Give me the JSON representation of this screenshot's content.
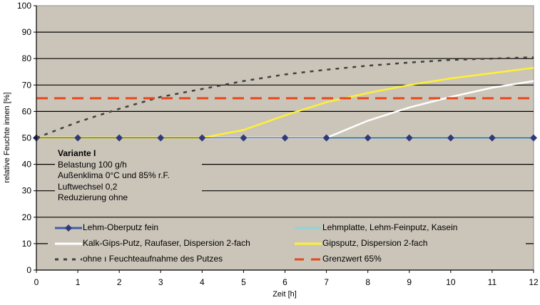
{
  "chart_data": {
    "type": "line",
    "title": "",
    "xlabel": "Zeit [h]",
    "ylabel": "relative Feuchte innen [%]",
    "x": [
      0,
      1,
      2,
      3,
      4,
      5,
      6,
      7,
      8,
      9,
      10,
      11,
      12
    ],
    "xlim": [
      0,
      12
    ],
    "ylim": [
      0,
      100
    ],
    "yticks": [
      0,
      10,
      20,
      30,
      40,
      50,
      60,
      70,
      80,
      90,
      100
    ],
    "xticks": [
      0,
      1,
      2,
      3,
      4,
      5,
      6,
      7,
      8,
      9,
      10,
      11,
      12
    ],
    "grid": true,
    "background": "#cbc5b9",
    "legend_position": "bottom-inside",
    "series": [
      {
        "name": "Lehm-Oberputz fein",
        "color": "#2e3a7a",
        "style": "solid-diamond",
        "values": [
          50,
          50,
          50,
          50,
          50,
          50,
          50,
          50,
          50,
          50,
          50,
          50,
          50
        ]
      },
      {
        "name": "Lehmplatte, Lehm-Feinputz, Kasein",
        "color": "#92d3d8",
        "style": "solid",
        "values": [
          50,
          50,
          50,
          50,
          50,
          50,
          50,
          50,
          50,
          50,
          50,
          50,
          50
        ]
      },
      {
        "name": "Kalk-Gips-Putz, Raufaser, Dispersion 2-fach",
        "color": "#ffffff",
        "style": "solid",
        "values": [
          50,
          50,
          50,
          50,
          50,
          50,
          50,
          50,
          56.5,
          61.5,
          65.5,
          69,
          71.5
        ]
      },
      {
        "name": "Gipsputz, Dispersion 2-fach",
        "color": "#fff033",
        "style": "solid",
        "values": [
          50,
          50,
          50,
          50,
          50,
          53,
          58.5,
          63.5,
          67,
          70,
          72.5,
          74.5,
          76.5
        ]
      },
      {
        "name": "ohne Feuchteaufnahme des Putzes",
        "color": "#404040",
        "style": "dotted",
        "values": [
          50,
          56,
          61,
          65.5,
          68.5,
          71.5,
          74,
          75.8,
          77.3,
          78.5,
          79.5,
          80,
          80.5
        ]
      },
      {
        "name": "Grenzwert 65%",
        "color": "#e8471c",
        "style": "dashed",
        "values": [
          65,
          65,
          65,
          65,
          65,
          65,
          65,
          65,
          65,
          65,
          65,
          65,
          65
        ]
      }
    ],
    "annotations": [
      "Variante I",
      "Belastung 100 g/h",
      "Außenklima 0°C und 85% r.F.",
      "Luftwechsel 0,2",
      "Reduzierung ohne"
    ]
  },
  "axes": {
    "y_ticks": [
      "0",
      "10",
      "20",
      "30",
      "40",
      "50",
      "60",
      "70",
      "80",
      "90",
      "100"
    ],
    "x_ticks": [
      "0",
      "1",
      "2",
      "3",
      "4",
      "5",
      "6",
      "7",
      "8",
      "9",
      "10",
      "11",
      "12"
    ],
    "x_label": "Zeit [h]",
    "y_label": "relative Feuchte innen [%]"
  },
  "note": {
    "title": "Variante I",
    "lines": [
      "Belastung 100 g/h",
      "Außenklima 0°C und 85% r.F.",
      "Luftwechsel 0,2",
      "Reduzierung ohne"
    ]
  },
  "legend": {
    "items": [
      {
        "label": "Lehm-Oberputz fein"
      },
      {
        "label": "Kalk-Gips-Putz, Raufaser, Dispersion 2-fach"
      },
      {
        "label": "ohne ı Feuchteaufnahme des Putzes"
      },
      {
        "label": "Lehmplatte, Lehm-Feinputz, Kasein"
      },
      {
        "label": "Gipsputz, Dispersion 2-fach"
      },
      {
        "label": "Grenzwert 65%"
      }
    ]
  }
}
